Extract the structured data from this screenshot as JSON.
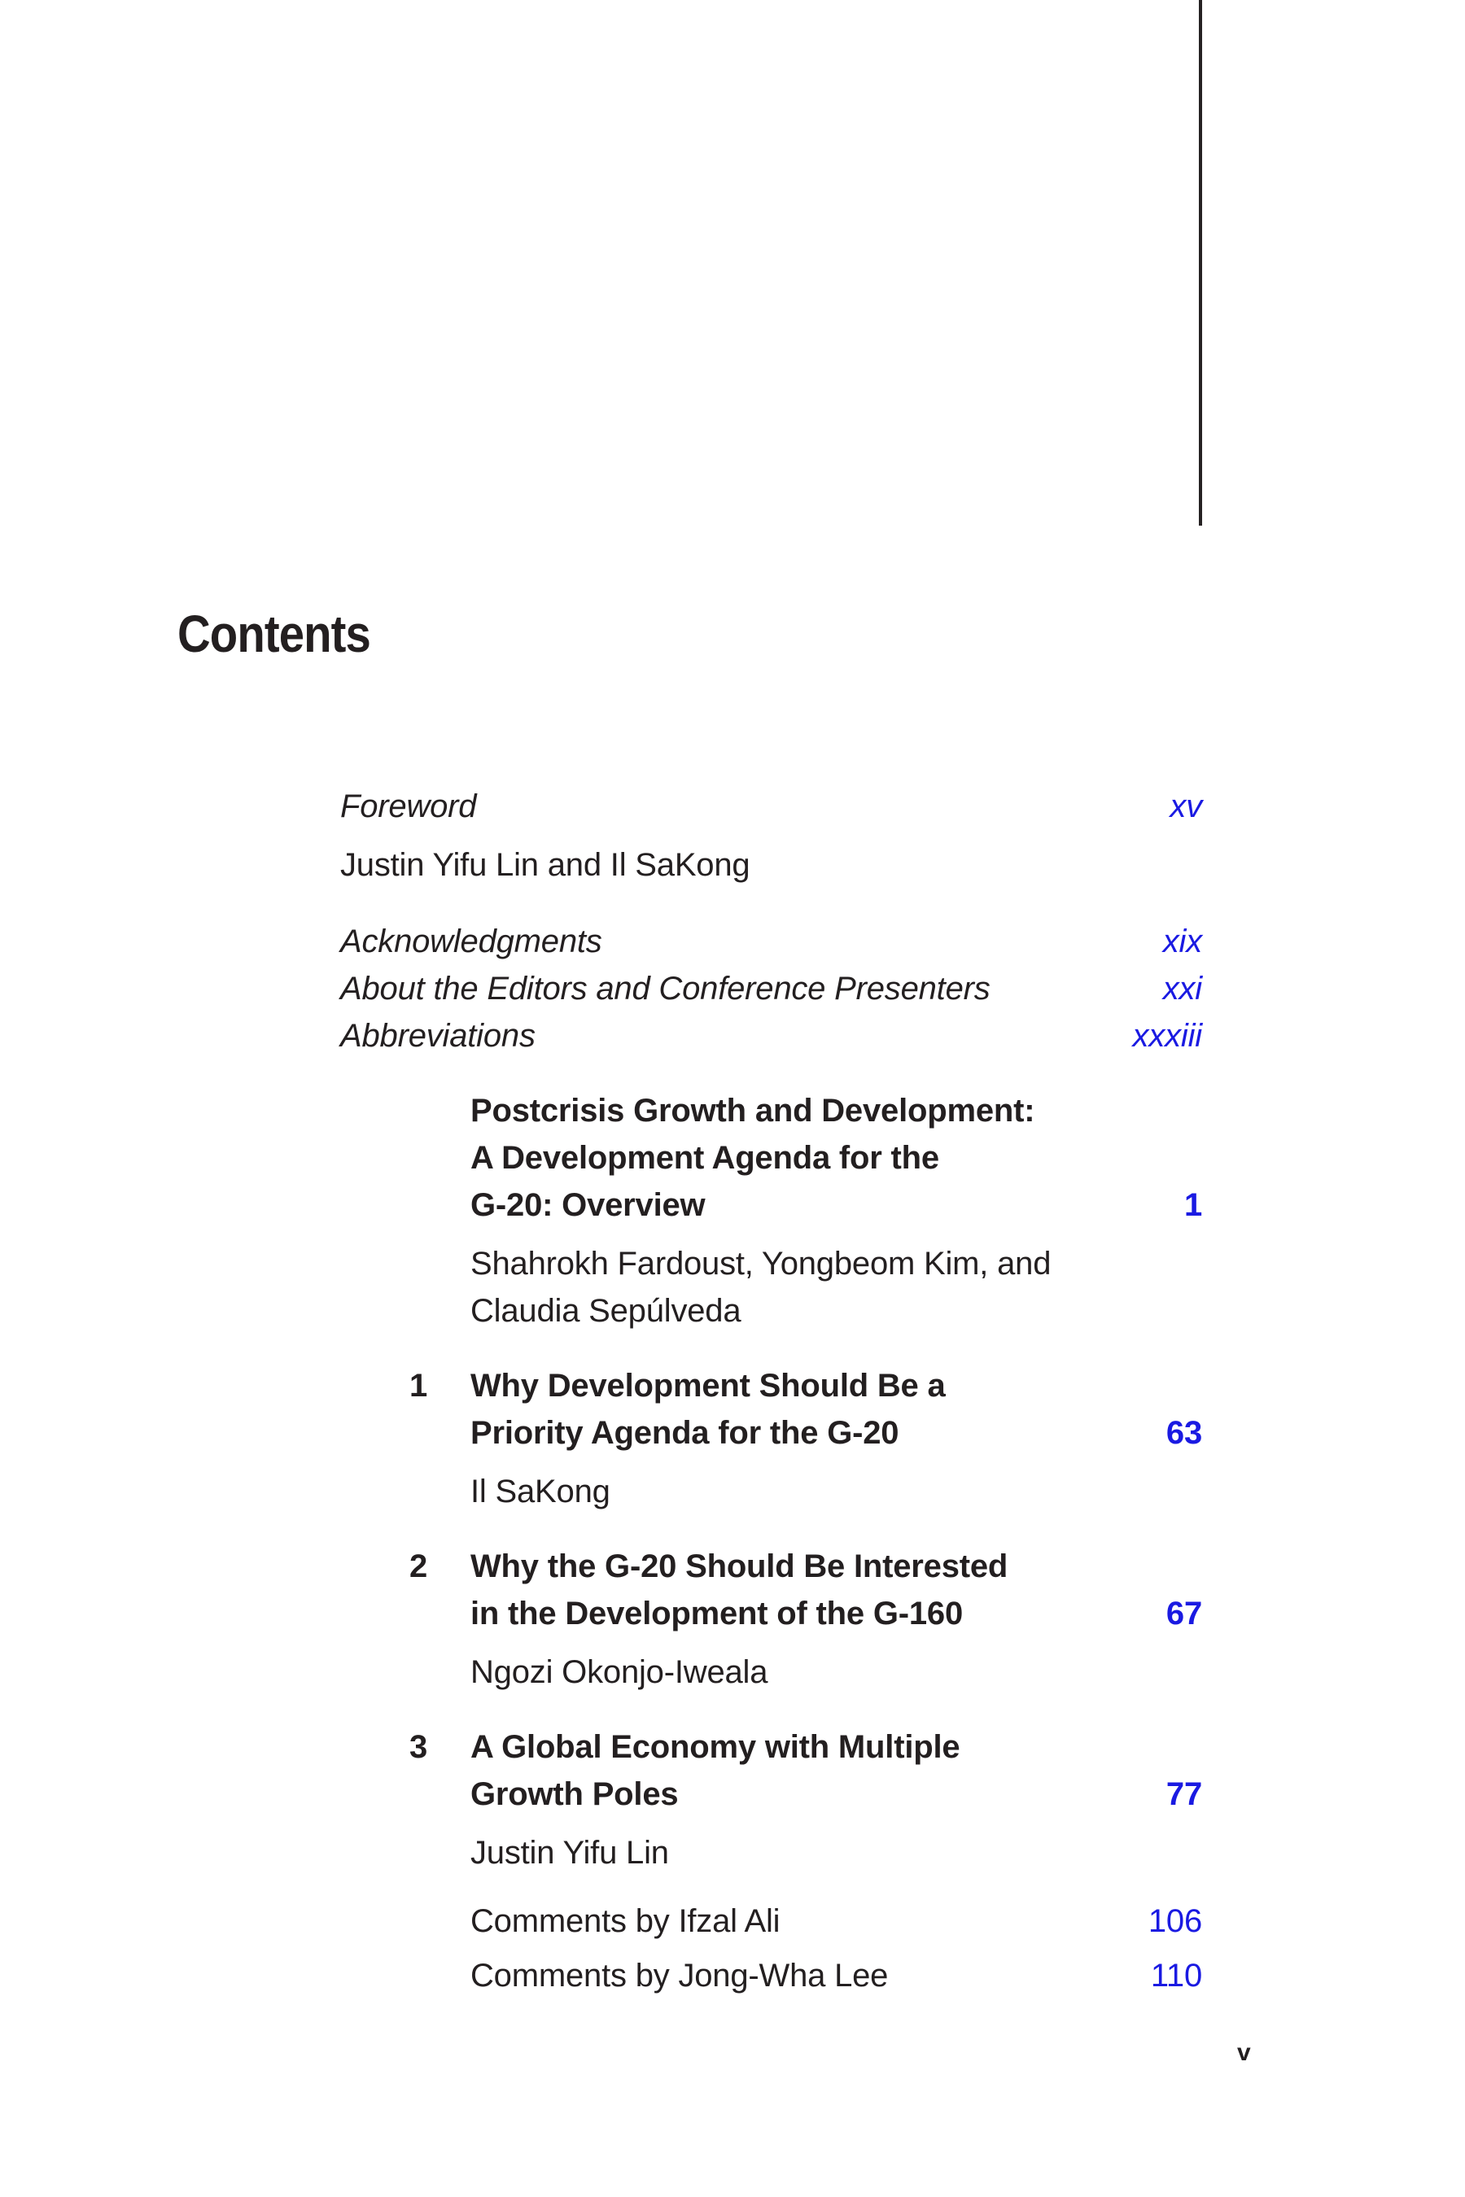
{
  "page": {
    "heading": "Contents",
    "folio": "v"
  },
  "colors": {
    "text": "#231f20",
    "page_number_blue": "#1a1ae2",
    "margin_rule": "#262223"
  },
  "front_matter": {
    "foreword": {
      "title": "Foreword",
      "page": "xv",
      "authors": "Justin Yifu Lin and Il SaKong"
    },
    "entries": [
      {
        "title": "Acknowledgments",
        "page": "xix"
      },
      {
        "title": "About the Editors and Conference Presenters",
        "page": "xxi"
      },
      {
        "title": "Abbreviations",
        "page": "xxxiii"
      }
    ]
  },
  "overview": {
    "title_lines": [
      "Postcrisis Growth and Development:",
      "A Development Agenda for the",
      "G-20: Overview"
    ],
    "page": "1",
    "author_lines": [
      "Shahrokh Fardoust, Yongbeom Kim, and",
      "Claudia Sepúlveda"
    ]
  },
  "chapters": [
    {
      "number": "1",
      "title_lines": [
        "Why Development Should Be a",
        "Priority Agenda for the G-20"
      ],
      "page": "63",
      "author": "Il SaKong"
    },
    {
      "number": "2",
      "title_lines": [
        "Why the G-20 Should Be Interested",
        "in the Development of the G-160"
      ],
      "page": "67",
      "author": "Ngozi Okonjo-Iweala"
    },
    {
      "number": "3",
      "title_lines": [
        "A Global Economy with Multiple",
        "Growth Poles"
      ],
      "page": "77",
      "author": "Justin Yifu Lin"
    }
  ],
  "comments": [
    {
      "title": "Comments by Ifzal Ali",
      "page": "106"
    },
    {
      "title": "Comments by Jong-Wha Lee",
      "page": "110"
    }
  ]
}
